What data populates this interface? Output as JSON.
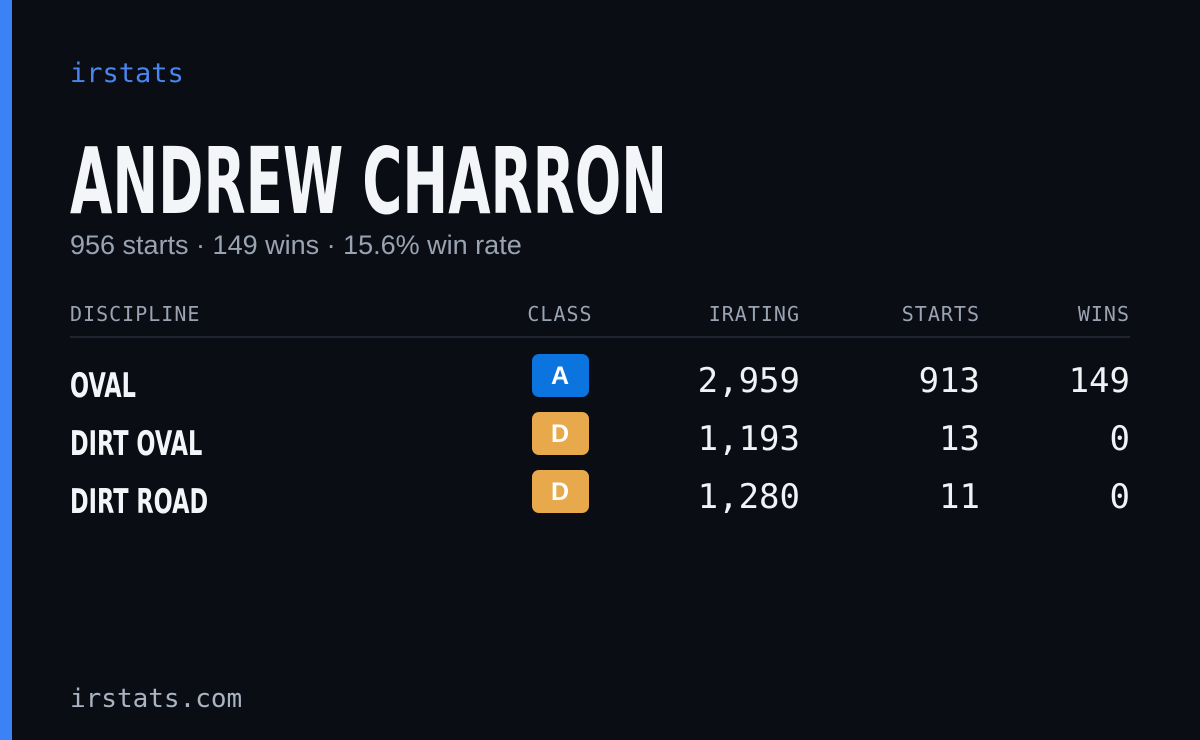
{
  "header": {
    "brand": "irstats",
    "name": "ANDREW CHARRON",
    "summary": "956 starts · 149 wins · 15.6% win rate"
  },
  "table": {
    "columns": [
      "DISCIPLINE",
      "CLASS",
      "IRATING",
      "STARTS",
      "WINS"
    ],
    "rows": [
      {
        "discipline": "OVAL",
        "class": "A",
        "class_color": "#0b74de",
        "irating": "2,959",
        "starts": "913",
        "wins": "149"
      },
      {
        "discipline": "DIRT OVAL",
        "class": "D",
        "class_color": "#e8a94c",
        "irating": "1,193",
        "starts": "13",
        "wins": "0"
      },
      {
        "discipline": "DIRT ROAD",
        "class": "D",
        "class_color": "#e8a94c",
        "irating": "1,280",
        "starts": "11",
        "wins": "0"
      }
    ]
  },
  "footer": {
    "site": "irstats.com"
  }
}
